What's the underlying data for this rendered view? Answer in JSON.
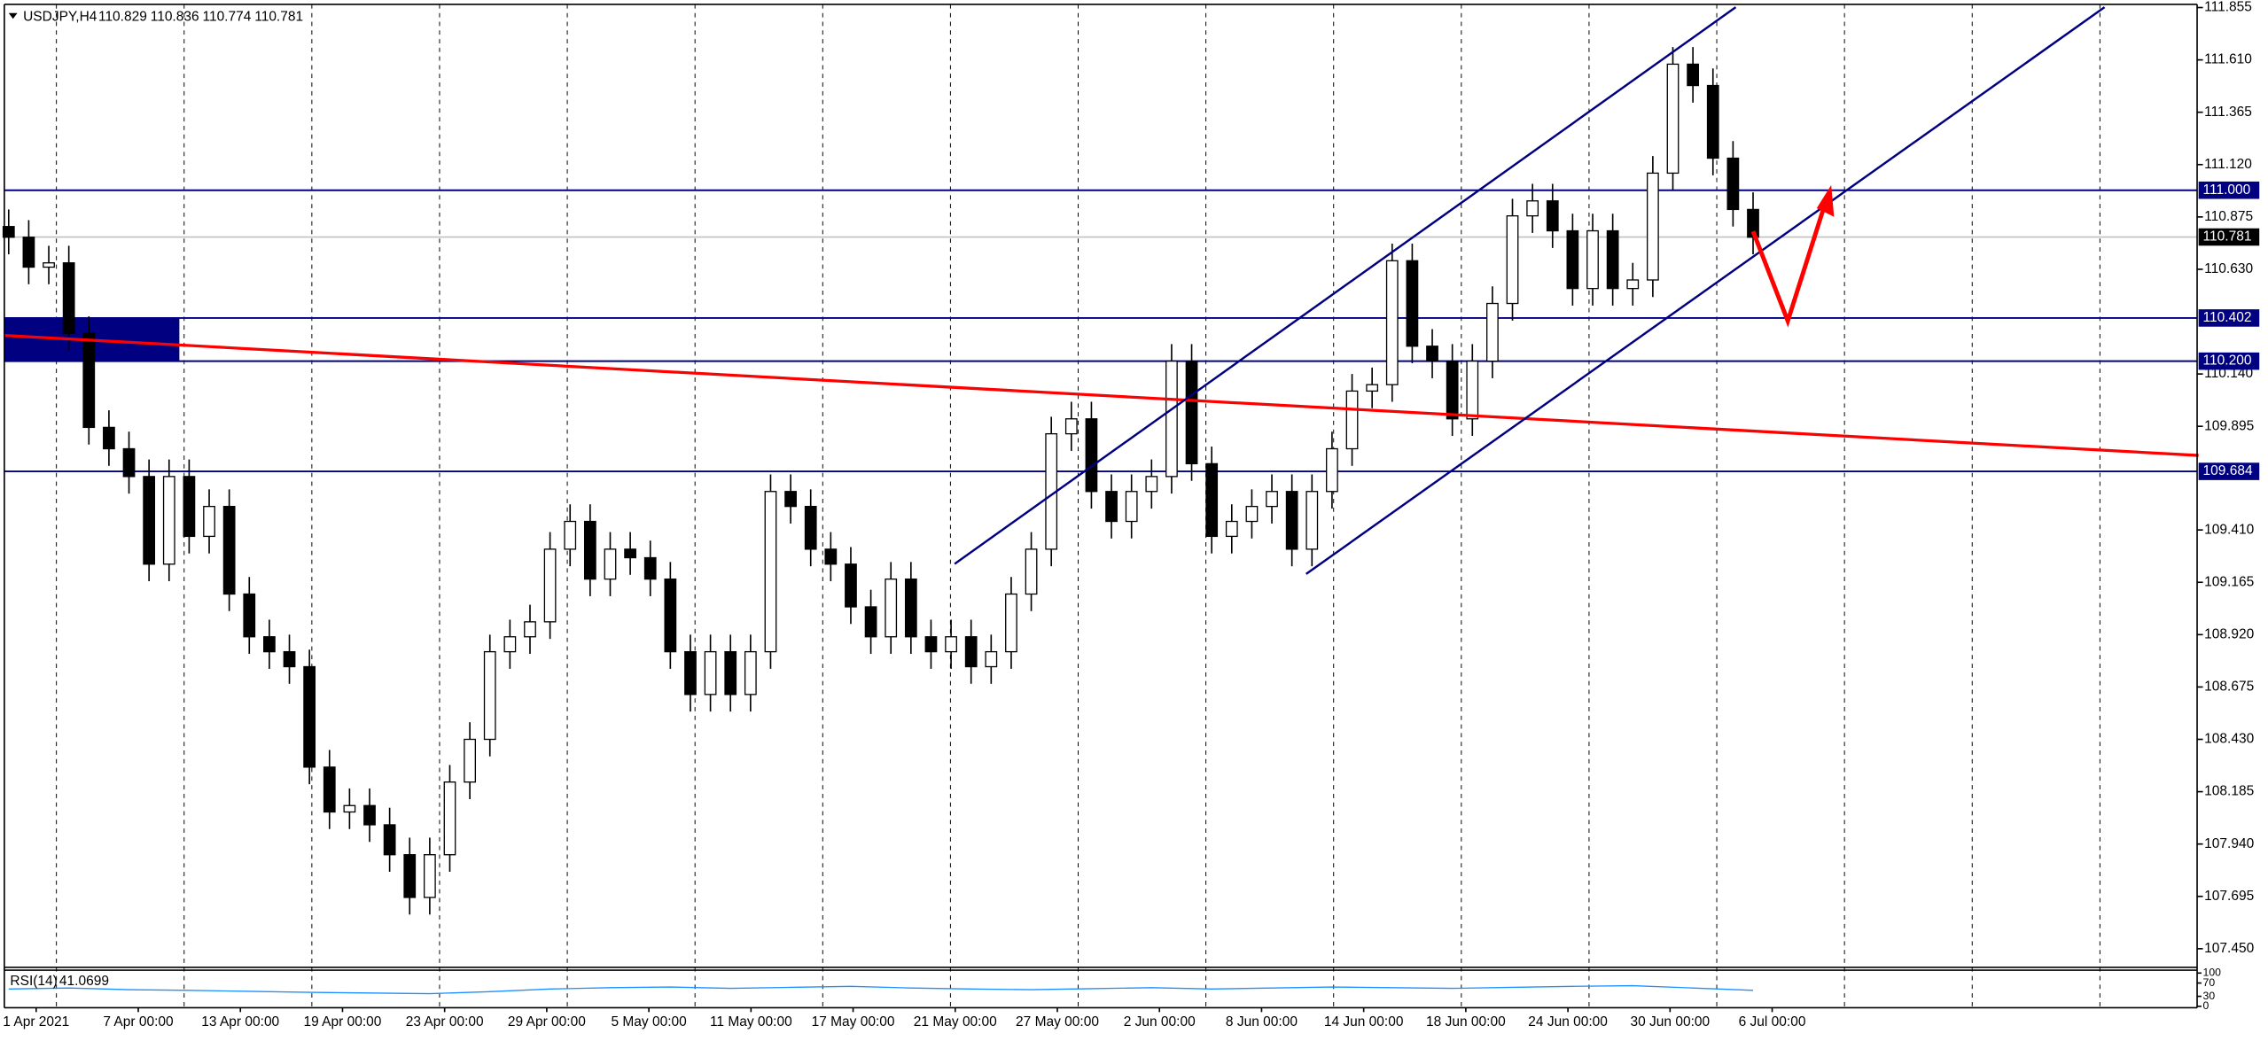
{
  "chart_data": {
    "type": "candlestick",
    "symbol": "USDJPY,H4",
    "quote": [
      110.829,
      110.836,
      110.774,
      110.781
    ],
    "categories": [
      "1 Apr 2021",
      "7 Apr 00:00",
      "13 Apr 00:00",
      "19 Apr 00:00",
      "23 Apr 00:00",
      "29 Apr 00:00",
      "5 May 00:00",
      "11 May 00:00",
      "17 May 00:00",
      "21 May 00:00",
      "27 May 00:00",
      "2 Jun 00:00",
      "8 Jun 00:00",
      "14 Jun 00:00",
      "18 Jun 00:00",
      "24 Jun 00:00",
      "30 Jun 00:00",
      "6 Jul 00:00"
    ],
    "open": [
      110.83,
      110.78,
      110.64,
      110.66,
      110.33,
      109.89,
      109.79,
      109.66,
      109.25,
      109.66,
      109.38,
      109.52,
      109.11,
      108.91,
      108.84,
      108.77,
      108.3,
      108.09,
      108.12,
      108.03,
      107.89,
      107.69,
      107.89,
      108.23,
      108.43,
      108.84,
      108.91,
      108.98,
      109.32,
      109.45,
      109.18,
      109.32,
      109.28,
      109.18,
      108.84,
      108.64,
      108.84,
      108.64,
      108.84,
      109.59,
      109.52,
      109.32,
      109.25,
      109.05,
      108.91,
      109.18,
      108.91,
      108.84,
      108.91,
      108.77,
      108.84,
      109.11,
      109.32,
      109.86,
      109.93,
      109.59,
      109.45,
      109.59,
      109.66,
      110.2,
      109.72,
      109.38,
      109.45,
      109.52,
      109.59,
      109.32,
      109.59,
      109.79,
      110.06,
      110.09,
      110.67,
      110.27,
      110.2,
      109.93,
      110.2,
      110.47,
      110.88,
      110.95,
      110.81,
      110.54,
      110.81,
      110.54,
      110.58,
      111.08,
      111.59,
      111.49,
      111.15,
      110.91
    ],
    "high": [
      110.91,
      110.86,
      110.74,
      110.74,
      110.41,
      109.97,
      109.87,
      109.74,
      109.74,
      109.74,
      109.6,
      109.6,
      109.19,
      108.99,
      108.92,
      108.85,
      108.38,
      108.2,
      108.2,
      108.11,
      107.97,
      107.97,
      108.31,
      108.51,
      108.92,
      108.99,
      109.06,
      109.4,
      109.53,
      109.53,
      109.4,
      109.4,
      109.36,
      109.26,
      108.92,
      108.92,
      108.92,
      108.92,
      109.67,
      109.67,
      109.6,
      109.4,
      109.33,
      109.13,
      109.26,
      109.26,
      108.99,
      108.99,
      108.99,
      108.92,
      109.19,
      109.4,
      109.94,
      110.01,
      110.01,
      109.67,
      109.67,
      109.74,
      110.28,
      110.28,
      109.8,
      109.53,
      109.6,
      109.67,
      109.67,
      109.67,
      109.87,
      110.14,
      110.17,
      110.75,
      110.75,
      110.35,
      110.28,
      110.28,
      110.55,
      110.96,
      111.03,
      111.03,
      110.89,
      110.89,
      110.89,
      110.66,
      111.16,
      111.67,
      111.67,
      111.57,
      111.23,
      110.99
    ],
    "low": [
      110.7,
      110.56,
      110.56,
      110.25,
      109.81,
      109.71,
      109.58,
      109.17,
      109.17,
      109.3,
      109.3,
      109.03,
      108.83,
      108.76,
      108.69,
      108.22,
      108.01,
      108.01,
      107.95,
      107.81,
      107.61,
      107.61,
      107.81,
      108.15,
      108.35,
      108.76,
      108.83,
      108.9,
      109.24,
      109.1,
      109.1,
      109.2,
      109.1,
      108.76,
      108.56,
      108.56,
      108.56,
      108.56,
      108.76,
      109.44,
      109.24,
      109.17,
      108.97,
      108.83,
      108.83,
      108.83,
      108.76,
      108.76,
      108.69,
      108.69,
      108.76,
      109.03,
      109.24,
      109.78,
      109.51,
      109.37,
      109.37,
      109.51,
      109.58,
      109.64,
      109.3,
      109.3,
      109.37,
      109.44,
      109.24,
      109.24,
      109.51,
      109.71,
      109.98,
      110.01,
      110.19,
      110.12,
      109.85,
      109.85,
      110.12,
      110.39,
      110.8,
      110.73,
      110.46,
      110.46,
      110.46,
      110.46,
      110.5,
      111.0,
      111.41,
      111.07,
      110.83,
      110.7
    ],
    "close": [
      110.78,
      110.64,
      110.66,
      110.33,
      109.89,
      109.79,
      109.66,
      109.25,
      109.66,
      109.38,
      109.52,
      109.11,
      108.91,
      108.84,
      108.77,
      108.3,
      108.09,
      108.12,
      108.03,
      107.89,
      107.69,
      107.89,
      108.23,
      108.43,
      108.84,
      108.91,
      108.98,
      109.32,
      109.45,
      109.18,
      109.32,
      109.28,
      109.18,
      108.84,
      108.64,
      108.84,
      108.64,
      108.84,
      109.59,
      109.52,
      109.32,
      109.25,
      109.05,
      108.91,
      109.18,
      108.91,
      108.84,
      108.91,
      108.77,
      108.84,
      109.11,
      109.32,
      109.86,
      109.93,
      109.59,
      109.45,
      109.59,
      109.66,
      110.2,
      109.72,
      109.38,
      109.45,
      109.52,
      109.59,
      109.32,
      109.59,
      109.79,
      110.06,
      110.09,
      110.67,
      110.27,
      110.2,
      109.93,
      110.2,
      110.47,
      110.88,
      110.95,
      110.81,
      110.54,
      110.81,
      110.54,
      110.58,
      111.08,
      111.59,
      111.49,
      111.15,
      110.91,
      110.78
    ],
    "up_color": "#ffffff",
    "down_color": "#000000",
    "ylim": [
      107.37,
      111.87
    ],
    "yticks": [
      111.855,
      {
        "value": 111.61,
        "label": "111.610"
      },
      111.365,
      {
        "value": 111.12,
        "label": "111.120"
      },
      110.875,
      {
        "value": 110.63,
        "label": "110.630"
      },
      {
        "value": 110.14,
        "label": "110.140"
      },
      109.895,
      {
        "value": 109.41,
        "label": "109.410"
      },
      109.165,
      {
        "value": 108.92,
        "label": "108.920"
      },
      108.675,
      {
        "value": 108.43,
        "label": "108.430"
      },
      108.185,
      {
        "value": 107.94,
        "label": "107.940"
      },
      107.695,
      {
        "value": 107.45,
        "label": "107.450"
      }
    ],
    "levels": [
      {
        "value": 111,
        "label": "111.000"
      },
      110.402,
      {
        "value": 110.2,
        "label": "110.200"
      },
      109.684
    ],
    "level_color": "#000080",
    "current_price": 110.781,
    "rsi": {
      "name": "RSI(14)",
      "value": 41.0699,
      "color": "#1e90ff",
      "ylim": [
        0,
        100
      ],
      "yticks": [
        100,
        70,
        30,
        0
      ],
      "values": [
        52,
        55,
        50,
        48,
        45,
        42,
        40,
        38,
        44,
        52,
        56,
        58,
        54,
        57,
        60,
        55,
        52,
        50,
        53,
        56,
        52,
        55,
        58,
        56,
        54,
        57,
        60,
        62,
        55,
        48
      ]
    }
  }
}
